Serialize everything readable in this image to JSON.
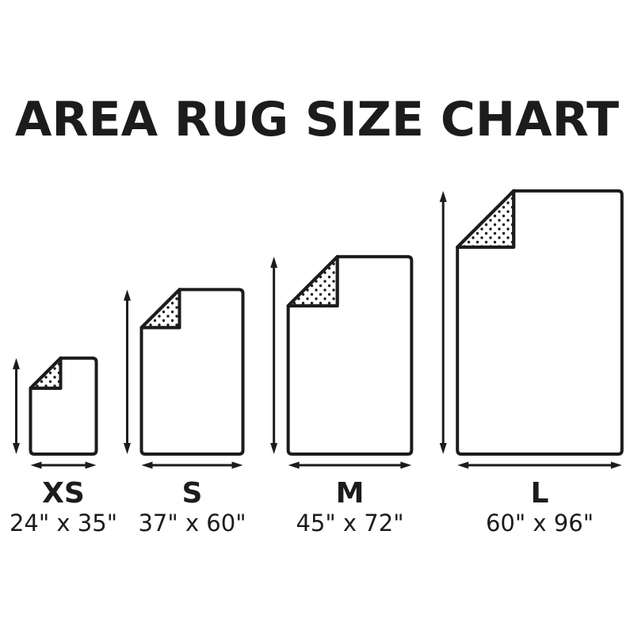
{
  "title": "AREA RUG SIZE CHART",
  "colors": {
    "ink": "#1c1c1c",
    "background": "#ffffff"
  },
  "rugs": [
    {
      "id": "xs",
      "label": "XS",
      "dimensions": "24\" x 35\"",
      "width_in": 24,
      "height_in": 35
    },
    {
      "id": "s",
      "label": "S",
      "dimensions": "37\" x 60\"",
      "width_in": 37,
      "height_in": 60
    },
    {
      "id": "m",
      "label": "M",
      "dimensions": "45\" x 72\"",
      "width_in": 45,
      "height_in": 72
    },
    {
      "id": "l",
      "label": "L",
      "dimensions": "60\" x 96\"",
      "width_in": 60,
      "height_in": 96
    }
  ]
}
